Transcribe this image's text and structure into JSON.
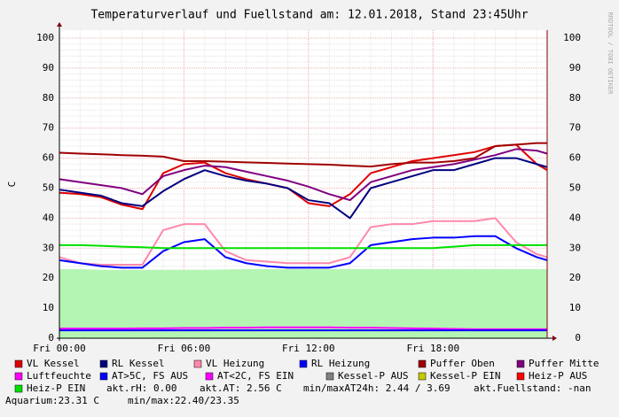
{
  "chart_data": {
    "type": "line",
    "title": "Temperaturverlauf und Fuellstand am: 12.01.2018, Stand 23:45Uhr",
    "y_label": "C",
    "side_text": "RRDTOOL / TOBI OETIKER",
    "x": [
      0,
      1,
      2,
      3,
      4,
      5,
      6,
      7,
      8,
      9,
      10,
      11,
      12,
      13,
      14,
      15,
      16,
      17,
      18,
      19,
      20,
      21,
      22,
      23,
      23.5
    ],
    "xlim": [
      0,
      23.5
    ],
    "xticks": [
      {
        "value": 0,
        "label": "Fri 00:00"
      },
      {
        "value": 6,
        "label": "Fri 06:00"
      },
      {
        "value": 12,
        "label": "Fri 12:00"
      },
      {
        "value": 18,
        "label": "Fri 18:00"
      }
    ],
    "ylim": [
      0,
      100
    ],
    "yticks": [
      0,
      10,
      20,
      30,
      40,
      50,
      60,
      70,
      80,
      90,
      100
    ],
    "grid": true,
    "area": {
      "color": "#b4f5b4",
      "values": [
        23,
        23,
        22.8,
        22.8,
        22.8,
        22.8,
        22.8,
        22.8,
        22.9,
        23,
        23,
        23,
        23,
        23,
        23,
        23,
        23,
        23,
        23,
        23,
        23,
        23,
        23,
        23,
        23
      ]
    },
    "series": [
      {
        "name": "VL Kessel",
        "color": "#e00000",
        "values": [
          48.5,
          48,
          47,
          44.5,
          43,
          55,
          58,
          58.5,
          55,
          53,
          51.5,
          50,
          45,
          44,
          48,
          55,
          57,
          59,
          60,
          61,
          62,
          64,
          64.5,
          58,
          56
        ]
      },
      {
        "name": "RL Kessel",
        "color": "#000080",
        "values": [
          49.5,
          48.5,
          47.5,
          45,
          44,
          49,
          53,
          56,
          54,
          52.5,
          51.5,
          50,
          46,
          45,
          40,
          50,
          52,
          54,
          56,
          56,
          58,
          60,
          60,
          58,
          57
        ]
      },
      {
        "name": "VL Heizung",
        "color": "#ff88aa",
        "values": [
          27,
          25,
          24.5,
          24.5,
          24.5,
          36,
          38,
          38,
          29,
          26,
          25.5,
          25,
          25,
          25,
          27,
          37,
          38,
          38,
          39,
          39,
          39,
          40,
          32,
          28,
          27
        ]
      },
      {
        "name": "RL Heizung",
        "color": "#0000ff",
        "values": [
          26,
          25,
          24,
          23.5,
          23.5,
          29,
          32,
          33,
          27,
          25,
          24,
          23.5,
          23.5,
          23.5,
          25,
          31,
          32,
          33,
          33.5,
          33.5,
          34,
          34,
          30,
          27,
          26
        ]
      },
      {
        "name": "Puffer Oben",
        "color": "#a00000",
        "values": [
          61.8,
          61.5,
          61.3,
          61,
          60.8,
          60.5,
          59,
          59,
          58.8,
          58.6,
          58.4,
          58.2,
          58,
          57.8,
          57.5,
          57.2,
          58,
          58.5,
          58.5,
          59,
          60,
          64,
          64.5,
          65,
          65
        ]
      },
      {
        "name": "Puffer Mitte",
        "color": "#800080",
        "values": [
          53,
          52,
          51,
          50,
          48,
          54,
          56,
          57.5,
          57,
          55.5,
          54,
          52.5,
          50.5,
          48,
          46,
          52,
          54,
          56,
          57,
          58,
          59.5,
          61,
          63,
          62.5,
          61.5
        ]
      },
      {
        "name": "Luftfeuchte",
        "color": "#ff00ff",
        "values": [
          3.2,
          3.2,
          3.2,
          3.2,
          3.3,
          3.3,
          3.4,
          3.4,
          3.5,
          3.5,
          3.6,
          3.6,
          3.6,
          3.6,
          3.5,
          3.5,
          3.4,
          3.3,
          3.2,
          3.1,
          3,
          3,
          3,
          3,
          3
        ]
      },
      {
        "name": "AT>5C, FS AUS",
        "color": "#0000ff",
        "values": [
          2.6,
          2.6,
          2.6,
          2.6,
          2.6,
          2.6,
          2.6,
          2.6,
          2.6,
          2.6,
          2.6,
          2.6,
          2.6,
          2.6,
          2.6,
          2.6,
          2.6,
          2.6,
          2.6,
          2.6,
          2.6,
          2.6,
          2.6,
          2.6,
          2.6
        ]
      },
      {
        "name": "AT<2C, FS EIN",
        "color": "#ff00ff"
      },
      {
        "name": "Kessel-P AUS",
        "color": "#808080"
      },
      {
        "name": "Kessel-P EIN",
        "color": "#c8c800"
      },
      {
        "name": "Heiz-P AUS",
        "color": "#ff0000"
      },
      {
        "name": "Heiz-P EIN",
        "color": "#00e000",
        "values": [
          31,
          31,
          30.8,
          30.5,
          30.3,
          30,
          30,
          30,
          30,
          30,
          30,
          30,
          30,
          30,
          30,
          30,
          30,
          30,
          30,
          30.5,
          31,
          31,
          31,
          31,
          31
        ]
      }
    ],
    "status": [
      "akt.rH: 0.00",
      "akt.AT: 2.56 C",
      "min/maxAT24h: 2.44 / 3.69",
      "akt.Fuellstand: -nan"
    ],
    "footer": [
      "Aquarium:23.31 C",
      "min/max:22.40/23.35"
    ]
  }
}
